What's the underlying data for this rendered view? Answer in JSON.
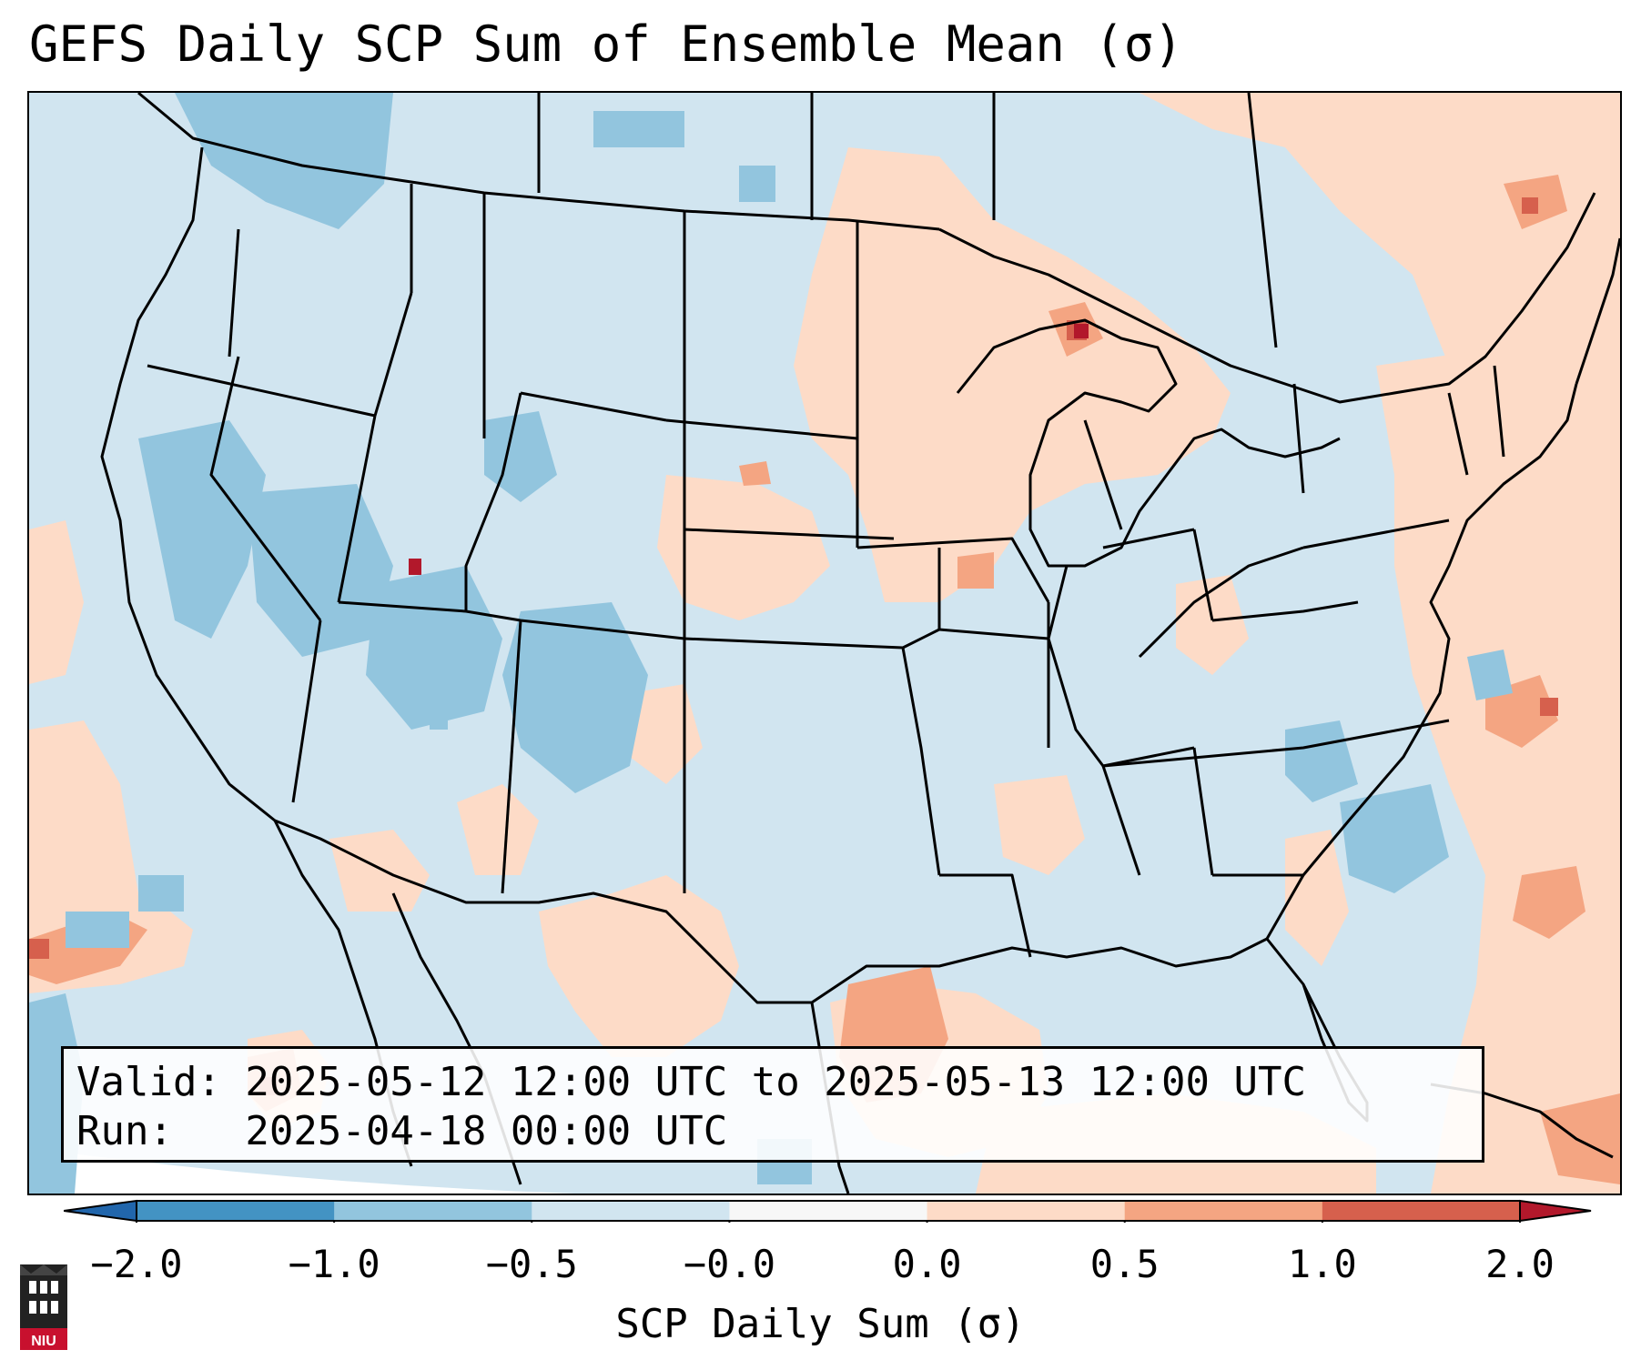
{
  "title": "GEFS Daily SCP Sum of Ensemble Mean (σ)",
  "info": {
    "valid_line": "Valid: 2025-05-12 12:00 UTC to 2025-05-13 12:00 UTC",
    "run_line": "Run:   2025-04-18 00:00 UTC"
  },
  "colorbar": {
    "label": "SCP Daily Sum (σ)",
    "ticks": [
      "−2.0",
      "−1.0",
      "−0.5",
      "−0.0",
      "0.0",
      "0.5",
      "1.0",
      "2.0"
    ],
    "colors": [
      "#4393c3",
      "#92c5de",
      "#d1e5f0",
      "#f7f7f7",
      "#fddbc7",
      "#f4a582",
      "#d6604d"
    ],
    "extend_low_color": "#2166ac",
    "extend_high_color": "#b2182b"
  },
  "logo": {
    "text": "NIU",
    "color": "#c8102e"
  },
  "map": {
    "background_color": "#d1e5f0",
    "border_color": "#000000"
  }
}
